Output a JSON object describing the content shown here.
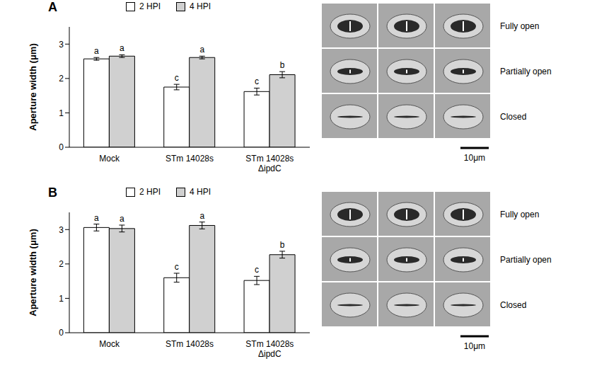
{
  "chart_data": [
    {
      "type": "bar",
      "title": "A",
      "y_label": "Aperture width (μm)",
      "categories": [
        "Mock",
        "STm 14028s",
        "STm 14028s ΔipdC"
      ],
      "series": [
        {
          "name": "2 HPI",
          "color": "#ffffff",
          "values": [
            2.57,
            1.75,
            1.62
          ],
          "errors": [
            0.04,
            0.08,
            0.1
          ],
          "letters": [
            "a",
            "c",
            "c"
          ]
        },
        {
          "name": "4 HPI",
          "color": "#d0d0d0",
          "values": [
            2.65,
            2.61,
            2.11
          ],
          "errors": [
            0.04,
            0.04,
            0.09
          ],
          "letters": [
            "a",
            "a",
            "b"
          ]
        }
      ],
      "ylim": [
        0,
        3.5
      ],
      "yticks": [
        0,
        1,
        2,
        3
      ],
      "grid": false,
      "legend": "top"
    },
    {
      "type": "bar",
      "title": "B",
      "y_label": "Aperture width (μm)",
      "categories": [
        "Mock",
        "STm 14028s",
        "STm 14028s ΔipdC"
      ],
      "series": [
        {
          "name": "2 HPI",
          "color": "#ffffff",
          "values": [
            3.06,
            1.6,
            1.52
          ],
          "errors": [
            0.1,
            0.13,
            0.12
          ],
          "letters": [
            "a",
            "c",
            "c"
          ]
        },
        {
          "name": "4 HPI",
          "color": "#d0d0d0",
          "values": [
            3.03,
            3.12,
            2.27
          ],
          "errors": [
            0.1,
            0.1,
            0.1
          ],
          "letters": [
            "a",
            "a",
            "b"
          ]
        }
      ],
      "ylim": [
        0,
        3.5
      ],
      "yticks": [
        0,
        1,
        2,
        3
      ],
      "grid": false,
      "legend": "top"
    }
  ],
  "micrographs": [
    {
      "row_labels": [
        "Fully open",
        "Partially open",
        "Closed"
      ],
      "scale_bar": "10μm"
    },
    {
      "row_labels": [
        "Fully open",
        "Partially open",
        "Closed"
      ],
      "scale_bar": "10μm"
    }
  ]
}
